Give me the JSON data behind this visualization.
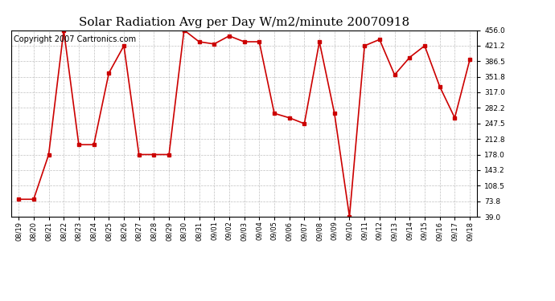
{
  "title": "Solar Radiation Avg per Day W/m2/minute 20070918",
  "copyright": "Copyright 2007 Cartronics.com",
  "dates": [
    "08/19",
    "08/20",
    "08/21",
    "08/22",
    "08/23",
    "08/24",
    "08/25",
    "08/26",
    "08/27",
    "08/28",
    "08/29",
    "08/30",
    "08/31",
    "09/01",
    "09/02",
    "09/03",
    "09/04",
    "09/05",
    "09/06",
    "09/07",
    "09/08",
    "09/09",
    "09/10",
    "09/11",
    "09/12",
    "09/13",
    "09/14",
    "09/15",
    "09/16",
    "09/17",
    "09/18"
  ],
  "values": [
    78,
    78,
    178,
    456,
    200,
    200,
    360,
    421,
    178,
    178,
    178,
    456,
    430,
    425,
    443,
    430,
    430,
    270,
    260,
    247,
    430,
    270,
    39,
    421,
    435,
    356,
    395,
    421,
    330,
    260,
    390
  ],
  "line_color": "#cc0000",
  "marker_color": "#cc0000",
  "bg_color": "#ffffff",
  "grid_color": "#b0b0b0",
  "yticks": [
    456.0,
    421.2,
    386.5,
    351.8,
    317.0,
    282.2,
    247.5,
    212.8,
    178.0,
    143.2,
    108.5,
    73.8,
    39.0
  ],
  "ymin": 39.0,
  "ymax": 456.0,
  "title_fontsize": 11,
  "copyright_fontsize": 7
}
